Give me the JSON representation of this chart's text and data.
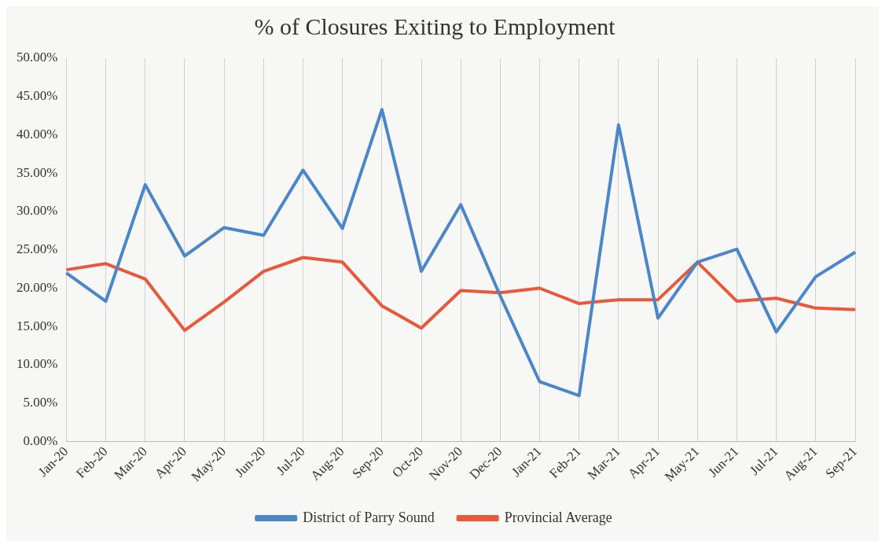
{
  "chart_data": {
    "type": "line",
    "title": "% of Closures Exiting to Employment",
    "categories": [
      "Jan-20",
      "Feb-20",
      "Mar-20",
      "Apr-20",
      "May-20",
      "Jun-20",
      "Jul-20",
      "Aug-20",
      "Sep-20",
      "Oct-20",
      "Nov-20",
      "Dec-20",
      "Jan-21",
      "Feb-21",
      "Mar-21",
      "Apr-21",
      "May-21",
      "Jun-21",
      "Jul-21",
      "Aug-21",
      "Sep-21"
    ],
    "series": [
      {
        "name": "District of Parry Sound",
        "color": "#4a86c8",
        "values": [
          22.0,
          18.3,
          33.5,
          24.2,
          27.9,
          26.9,
          35.4,
          27.8,
          43.3,
          22.2,
          30.9,
          19.0,
          7.8,
          6.0,
          41.3,
          16.1,
          23.4,
          25.1,
          14.3,
          21.5,
          24.7
        ]
      },
      {
        "name": "Provincial Average",
        "color": "#e8583a",
        "values": [
          22.4,
          23.2,
          21.2,
          14.5,
          18.2,
          22.2,
          24.0,
          23.4,
          17.7,
          14.8,
          19.7,
          19.4,
          20.0,
          18.0,
          18.5,
          18.5,
          23.4,
          18.3,
          18.7,
          17.4,
          17.2
        ]
      }
    ],
    "ylim": [
      0,
      50
    ],
    "yticks": [
      {
        "value": 0,
        "label": "0.00%"
      },
      {
        "value": 5,
        "label": "5.00%"
      },
      {
        "value": 10,
        "label": "10.00%"
      },
      {
        "value": 15,
        "label": "15.00%"
      },
      {
        "value": 20,
        "label": "20.00%"
      },
      {
        "value": 25,
        "label": "25.00%"
      },
      {
        "value": 30,
        "label": "30.00%"
      },
      {
        "value": 35,
        "label": "35.00%"
      },
      {
        "value": 40,
        "label": "40.00%"
      },
      {
        "value": 45,
        "label": "45.00%"
      },
      {
        "value": 50,
        "label": "50.00%"
      }
    ],
    "grid": "x",
    "legend": "bottom",
    "marker": "none",
    "line_style": "solid"
  }
}
